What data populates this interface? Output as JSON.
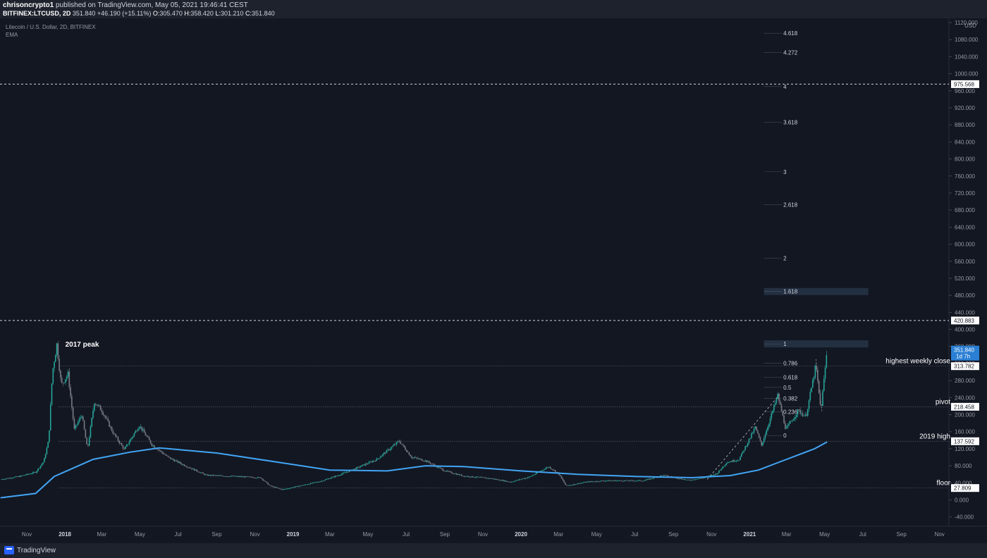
{
  "header": {
    "publisher": "chrisoncrypto1",
    "published_text": "published on TradingView.com, May 05, 2021 19:46:41 CEST",
    "symbol_line": "BITFINEX:LTCUSD, 2D",
    "last": "351.840",
    "change": "+46.190 (+15.11%)",
    "o_label": "O:",
    "o": "305.470",
    "h_label": "H:",
    "h": "358.420",
    "l_label": "L:",
    "l": "301.210",
    "c_label": "C:",
    "c": "351.840"
  },
  "footer": {
    "brand": "TradingView"
  },
  "chart_data": {
    "type": "candlestick",
    "legend": [
      "Litecoin / U.S. Dollar, 2D, BITFINEX",
      "EMA"
    ],
    "currency_label": "USD",
    "y_ticks": [
      1120,
      1080,
      1040,
      1000,
      960,
      920,
      880,
      840,
      800,
      760,
      720,
      680,
      640,
      600,
      560,
      520,
      480,
      440,
      400,
      360,
      320,
      280,
      240,
      200,
      160,
      120,
      80,
      40,
      0,
      -40
    ],
    "y_tick_labels": [
      "1120.000",
      "1080.000",
      "1040.000",
      "1000.000",
      "960.000",
      "920.000",
      "880.000",
      "840.000",
      "800.000",
      "760.000",
      "720.000",
      "680.000",
      "640.000",
      "600.000",
      "560.000",
      "520.000",
      "480.000",
      "440.000",
      "400.000",
      "360.000",
      "320.000",
      "280.000",
      "240.000",
      "200.000",
      "160.000",
      "120.000",
      "80.000",
      "40.000",
      "0.000",
      "-40.000"
    ],
    "ylim": [
      -62,
      1130
    ],
    "x_ticks": [
      {
        "label": "Nov",
        "date": "2017-11"
      },
      {
        "label": "2018",
        "date": "2018-01"
      },
      {
        "label": "Mar",
        "date": "2018-03"
      },
      {
        "label": "May",
        "date": "2018-05"
      },
      {
        "label": "Jul",
        "date": "2018-07"
      },
      {
        "label": "Sep",
        "date": "2018-09"
      },
      {
        "label": "Nov",
        "date": "2018-11"
      },
      {
        "label": "2019",
        "date": "2019-01"
      },
      {
        "label": "Mar",
        "date": "2019-03"
      },
      {
        "label": "May",
        "date": "2019-05"
      },
      {
        "label": "Jul",
        "date": "2019-07"
      },
      {
        "label": "Sep",
        "date": "2019-09"
      },
      {
        "label": "Nov",
        "date": "2019-11"
      },
      {
        "label": "2020",
        "date": "2020-01"
      },
      {
        "label": "Mar",
        "date": "2020-03"
      },
      {
        "label": "May",
        "date": "2020-05"
      },
      {
        "label": "Jul",
        "date": "2020-07"
      },
      {
        "label": "Sep",
        "date": "2020-09"
      },
      {
        "label": "Nov",
        "date": "2020-11"
      },
      {
        "label": "2021",
        "date": "2021-01"
      },
      {
        "label": "Mar",
        "date": "2021-03"
      },
      {
        "label": "May",
        "date": "2021-05"
      },
      {
        "label": "Jul",
        "date": "2021-07"
      },
      {
        "label": "Sep",
        "date": "2021-09"
      },
      {
        "label": "Nov",
        "date": "2021-11"
      }
    ],
    "price_path": [
      [
        "2017-09-20",
        48
      ],
      [
        "2017-10-20",
        55
      ],
      [
        "2017-11-15",
        65
      ],
      [
        "2017-11-28",
        90
      ],
      [
        "2017-12-06",
        140
      ],
      [
        "2017-12-12",
        300
      ],
      [
        "2017-12-19",
        365
      ],
      [
        "2017-12-26",
        270
      ],
      [
        "2018-01-06",
        295
      ],
      [
        "2018-01-16",
        165
      ],
      [
        "2018-01-28",
        200
      ],
      [
        "2018-02-06",
        118
      ],
      [
        "2018-02-17",
        230
      ],
      [
        "2018-03-01",
        210
      ],
      [
        "2018-03-20",
        155
      ],
      [
        "2018-04-06",
        118
      ],
      [
        "2018-04-30",
        175
      ],
      [
        "2018-05-20",
        130
      ],
      [
        "2018-06-15",
        100
      ],
      [
        "2018-07-10",
        82
      ],
      [
        "2018-08-15",
        58
      ],
      [
        "2018-09-15",
        56
      ],
      [
        "2018-10-15",
        54
      ],
      [
        "2018-11-10",
        52
      ],
      [
        "2018-11-25",
        33
      ],
      [
        "2018-12-15",
        24
      ],
      [
        "2019-01-15",
        34
      ],
      [
        "2019-02-15",
        44
      ],
      [
        "2019-03-15",
        58
      ],
      [
        "2019-04-15",
        76
      ],
      [
        "2019-05-15",
        95
      ],
      [
        "2019-06-20",
        138
      ],
      [
        "2019-07-10",
        100
      ],
      [
        "2019-08-01",
        92
      ],
      [
        "2019-09-01",
        68
      ],
      [
        "2019-10-01",
        56
      ],
      [
        "2019-11-15",
        50
      ],
      [
        "2019-12-15",
        42
      ],
      [
        "2020-01-15",
        54
      ],
      [
        "2020-02-14",
        78
      ],
      [
        "2020-03-01",
        62
      ],
      [
        "2020-03-13",
        33
      ],
      [
        "2020-04-15",
        42
      ],
      [
        "2020-05-15",
        45
      ],
      [
        "2020-07-15",
        45
      ],
      [
        "2020-08-15",
        58
      ],
      [
        "2020-09-25",
        46
      ],
      [
        "2020-10-20",
        52
      ],
      [
        "2020-11-10",
        62
      ],
      [
        "2020-11-25",
        88
      ],
      [
        "2020-12-15",
        95
      ],
      [
        "2021-01-10",
        170
      ],
      [
        "2021-01-20",
        128
      ],
      [
        "2021-02-15",
        245
      ],
      [
        "2021-02-28",
        165
      ],
      [
        "2021-03-20",
        210
      ],
      [
        "2021-04-01",
        195
      ],
      [
        "2021-04-17",
        315
      ],
      [
        "2021-04-25",
        210
      ],
      [
        "2021-05-05",
        352
      ]
    ],
    "ema_path": [
      [
        "2017-09-20",
        5
      ],
      [
        "2017-11-15",
        15
      ],
      [
        "2017-12-15",
        55
      ],
      [
        "2018-02-15",
        95
      ],
      [
        "2018-04-15",
        112
      ],
      [
        "2018-06-01",
        122
      ],
      [
        "2018-09-01",
        110
      ],
      [
        "2018-12-01",
        90
      ],
      [
        "2019-03-01",
        70
      ],
      [
        "2019-06-01",
        68
      ],
      [
        "2019-08-01",
        80
      ],
      [
        "2019-10-01",
        78
      ],
      [
        "2020-01-01",
        68
      ],
      [
        "2020-04-01",
        60
      ],
      [
        "2020-07-01",
        55
      ],
      [
        "2020-10-01",
        52
      ],
      [
        "2020-12-01",
        57
      ],
      [
        "2021-01-15",
        70
      ],
      [
        "2021-03-01",
        95
      ],
      [
        "2021-04-15",
        120
      ],
      [
        "2021-05-05",
        136
      ]
    ],
    "fib_levels": [
      {
        "label": "4.618",
        "price": 1095
      },
      {
        "label": "4.272",
        "price": 1050
      },
      {
        "label": "4",
        "price": 970
      },
      {
        "label": "3.618",
        "price": 886
      },
      {
        "label": "3",
        "price": 770
      },
      {
        "label": "2.618",
        "price": 693
      },
      {
        "label": "2",
        "price": 567
      },
      {
        "label": "1.618",
        "price": 489
      },
      {
        "label": "1",
        "price": 366
      },
      {
        "label": "0.786",
        "price": 321
      },
      {
        "label": "0.618",
        "price": 288
      },
      {
        "label": "0.5",
        "price": 264
      },
      {
        "label": "0.382",
        "price": 238
      },
      {
        "label": "0.236",
        "price": 207
      },
      {
        "label": "0",
        "price": 151
      }
    ],
    "horizontal_levels": [
      {
        "label": "975.568",
        "price": 975.568,
        "style": "dashed"
      },
      {
        "label": "420.883",
        "price": 420.883,
        "style": "dashed"
      },
      {
        "label": "313.782",
        "price": 313.782,
        "style": "dotted",
        "annotation": "highest weekly close"
      },
      {
        "label": "218.458",
        "price": 218.458,
        "style": "dotted",
        "annotation": "pivot"
      },
      {
        "label": "137.592",
        "price": 137.592,
        "style": "dotted",
        "annotation": "2019 high"
      },
      {
        "label": "27.809",
        "price": 27.809,
        "style": "dotted",
        "annotation": "floor"
      }
    ],
    "current_price": {
      "label": "351.840",
      "countdown": "1d 7h",
      "price": 351.84
    },
    "annotations": [
      {
        "text": "2017 peak",
        "date": "2017-12-19",
        "price": 366
      }
    ],
    "colors": {
      "up": "#26a69a",
      "down": "#787b86",
      "ema": "#42a5f5",
      "price_tag": "#2a7fd4"
    }
  }
}
